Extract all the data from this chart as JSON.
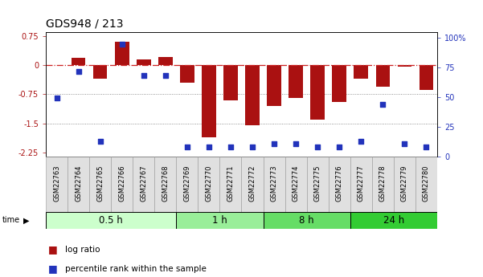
{
  "title": "GDS948 / 213",
  "samples": [
    "GSM22763",
    "GSM22764",
    "GSM22765",
    "GSM22766",
    "GSM22767",
    "GSM22768",
    "GSM22769",
    "GSM22770",
    "GSM22771",
    "GSM22772",
    "GSM22773",
    "GSM22774",
    "GSM22775",
    "GSM22776",
    "GSM22777",
    "GSM22778",
    "GSM22779",
    "GSM22780"
  ],
  "log_ratio": [
    0.0,
    0.18,
    -0.35,
    0.6,
    0.15,
    0.2,
    -0.45,
    -1.85,
    -0.9,
    -1.55,
    -1.05,
    -0.85,
    -1.4,
    -0.95,
    -0.35,
    -0.55,
    -0.05,
    -0.65
  ],
  "percentile": [
    47,
    68,
    12,
    90,
    65,
    65,
    8,
    8,
    8,
    8,
    10,
    10,
    8,
    8,
    12,
    42,
    10,
    8
  ],
  "groups": [
    {
      "label": "0.5 h",
      "start": 0,
      "end": 6,
      "color": "#ccffcc"
    },
    {
      "label": "1 h",
      "start": 6,
      "end": 10,
      "color": "#99ee99"
    },
    {
      "label": "8 h",
      "start": 10,
      "end": 14,
      "color": "#66dd66"
    },
    {
      "label": "24 h",
      "start": 14,
      "end": 18,
      "color": "#33cc33"
    }
  ],
  "ylim_left": [
    -2.35,
    0.85
  ],
  "ylim_right": [
    0,
    105
  ],
  "bar_color": "#aa1111",
  "dot_color": "#2233bb",
  "hline_color": "#cc2222",
  "dotted_color": "#777777",
  "background_color": "#ffffff",
  "right_yticks": [
    0,
    25,
    50,
    75,
    100
  ],
  "right_yticklabels": [
    "0",
    "25",
    "50",
    "75",
    "100%"
  ],
  "left_yticks": [
    -2.25,
    -1.5,
    -0.75,
    0,
    0.75
  ],
  "title_fontsize": 10,
  "tick_fontsize": 7,
  "sample_fontsize": 6,
  "group_label_fontsize": 8.5,
  "legend_fontsize": 7.5
}
